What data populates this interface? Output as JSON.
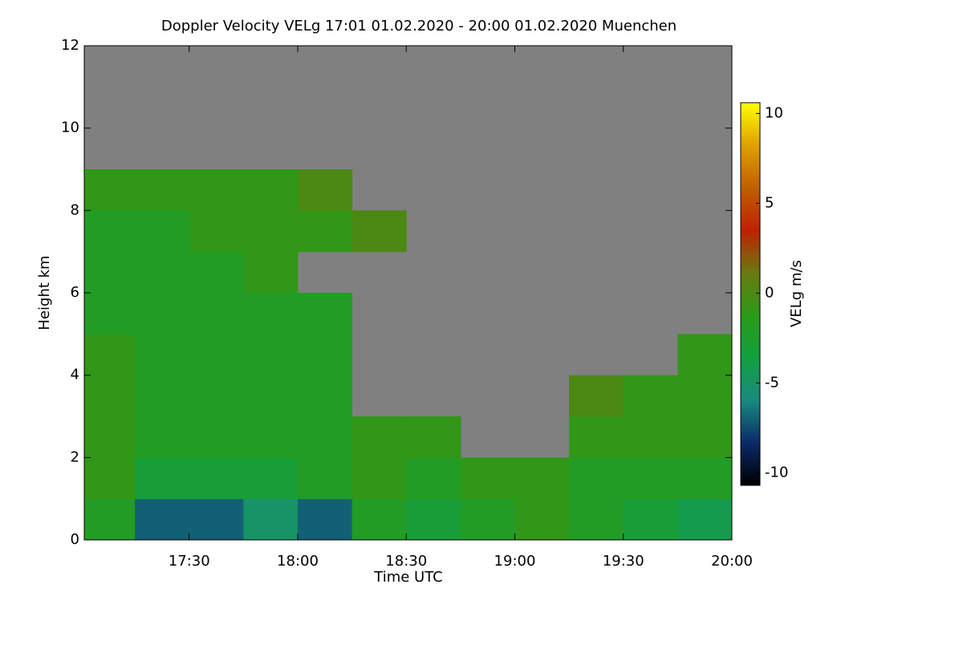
{
  "chart_data": {
    "type": "heatmap",
    "title": "Doppler Velocity VELg   17:01 01.02.2020 - 20:00 01.02.2020 Muenchen",
    "xlabel": "Time UTC",
    "ylabel": "Height km",
    "colorbar_label": "VELg m/s",
    "xlim": [
      "17:01",
      "20:00"
    ],
    "xticks": [
      "17:30",
      "18:00",
      "18:30",
      "19:00",
      "19:30",
      "20:00"
    ],
    "ylim": [
      0,
      12
    ],
    "yticks": [
      0,
      2,
      4,
      6,
      8,
      10,
      12
    ],
    "zlim": [
      -10.7,
      10.6
    ],
    "zticks": [
      -10,
      -5,
      0,
      5,
      10
    ],
    "colormap": [
      "#000000",
      "#0a2a6a",
      "#1a8a80",
      "#12a040",
      "#2a9a18",
      "#6a7a10",
      "#c02000",
      "#c06000",
      "#e0a000",
      "#ffff00"
    ],
    "nodata_color": "#808080",
    "x_bins": [
      "17:01",
      "17:15",
      "17:30",
      "17:45",
      "18:00",
      "18:15",
      "18:30",
      "18:45",
      "19:00",
      "19:15",
      "19:30",
      "19:45",
      "20:00"
    ],
    "y_bins": [
      0,
      1,
      2,
      3,
      4,
      5,
      6,
      7,
      8,
      9,
      10,
      11,
      12
    ],
    "z": [
      [
        -2,
        -7,
        -7,
        -5,
        -7,
        -2,
        -3,
        -2,
        -1,
        -2,
        -3,
        -4
      ],
      [
        -1,
        -3,
        -3,
        -3,
        -2,
        -1,
        -2,
        -1,
        -1,
        -2,
        -2,
        -2
      ],
      [
        -1,
        -2,
        -2,
        -2,
        -2,
        -1,
        -1,
        null,
        null,
        -1,
        -1,
        -1
      ],
      [
        -1,
        -2,
        -2,
        -2,
        -2,
        null,
        null,
        null,
        null,
        0,
        -1,
        -1
      ],
      [
        -1,
        -2,
        -2,
        -2,
        -2,
        null,
        null,
        null,
        null,
        null,
        null,
        -1
      ],
      [
        -2,
        -2,
        -2,
        -2,
        -2,
        null,
        null,
        null,
        null,
        null,
        null,
        null
      ],
      [
        -2,
        -2,
        -2,
        -1,
        null,
        null,
        null,
        null,
        null,
        null,
        null,
        null
      ],
      [
        -2,
        -2,
        -1,
        -1,
        -1,
        0,
        null,
        null,
        null,
        null,
        null,
        null
      ],
      [
        -1,
        -1,
        -1,
        -1,
        0,
        null,
        null,
        null,
        null,
        null,
        null,
        null
      ],
      [
        null,
        null,
        null,
        null,
        null,
        null,
        null,
        null,
        null,
        null,
        null,
        null
      ],
      [
        null,
        null,
        null,
        null,
        null,
        null,
        null,
        null,
        null,
        null,
        null,
        null
      ],
      [
        null,
        null,
        null,
        null,
        null,
        null,
        null,
        null,
        null,
        null,
        null,
        null
      ]
    ]
  }
}
